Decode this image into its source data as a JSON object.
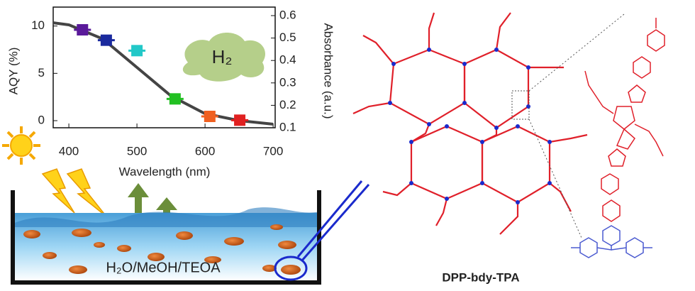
{
  "chart_data": {
    "type": "line",
    "x_label": "Wavelength (nm)",
    "y_label": "AQY (%)",
    "y2_label": "Absorbance (a.u.)",
    "xlim": [
      377,
      703
    ],
    "xticks": [
      400,
      500,
      600,
      700
    ],
    "ylim": [
      -0.75,
      12.0
    ],
    "yticks": [
      0,
      5,
      10
    ],
    "y2lim": [
      0.1,
      0.638
    ],
    "y2ticks": [
      0.1,
      0.2,
      0.3,
      0.4,
      0.5,
      0.6
    ],
    "series": [
      {
        "type": "line",
        "axis": "y2",
        "color": "#444444",
        "x": [
          377,
          400,
          450,
          500,
          550,
          600,
          650,
          700
        ],
        "values": [
          0.568,
          0.559,
          0.496,
          0.369,
          0.242,
          0.163,
          0.132,
          0.116
        ]
      },
      {
        "type": "scatter",
        "axis": "y",
        "x": [
          420,
          455,
          500,
          556,
          607,
          651
        ],
        "values": [
          9.6,
          8.5,
          7.4,
          2.3,
          0.45,
          0.05
        ],
        "colors": [
          "#5a1a9a",
          "#1a2a9e",
          "#22c8c8",
          "#22c022",
          "#f06020",
          "#e02020"
        ]
      }
    ],
    "annotations": [
      "H₂",
      "H₂O/MeOH/TEOA",
      "DPP-bdy-TPA"
    ]
  }
}
